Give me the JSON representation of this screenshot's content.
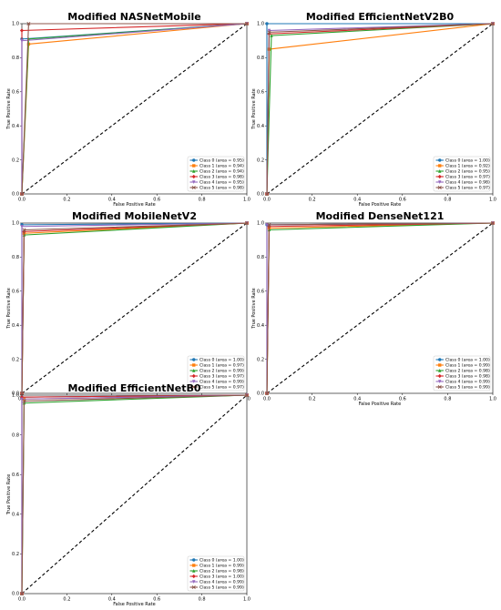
{
  "chart_data": [
    {
      "type": "line",
      "title": "Modified NASNetMobile",
      "xlabel": "False Positive Rate",
      "ylabel": "True Positive Rate",
      "xlim": [
        0,
        1
      ],
      "ylim": [
        0,
        1
      ],
      "x_ticks": [
        "0.0",
        "0.2",
        "0.4",
        "0.6",
        "0.8",
        "1.0"
      ],
      "y_ticks": [
        "0.0",
        "0.2",
        "0.4",
        "0.6",
        "0.8",
        "1.0"
      ],
      "legend_position": "lower-right",
      "diagonal": "dashed-black",
      "series": [
        {
          "name": "Class 0 (area = 0.95)",
          "color": "#1f77b4",
          "points": [
            [
              0,
              0
            ],
            [
              0,
              0.91
            ],
            [
              1,
              1
            ]
          ]
        },
        {
          "name": "Class 1 (area = 0.94)",
          "color": "#ff7f0e",
          "points": [
            [
              0,
              0
            ],
            [
              0.03,
              0.88
            ],
            [
              1,
              1
            ]
          ]
        },
        {
          "name": "Class 2 (area = 0.94)",
          "color": "#2ca02c",
          "points": [
            [
              0,
              0
            ],
            [
              0.03,
              0.91
            ],
            [
              1,
              1
            ]
          ]
        },
        {
          "name": "Class 3 (area = 0.98)",
          "color": "#d62728",
          "points": [
            [
              0,
              0
            ],
            [
              0,
              0.96
            ],
            [
              1,
              1
            ]
          ]
        },
        {
          "name": "Class 4 (area = 0.95)",
          "color": "#9467bd",
          "points": [
            [
              0,
              0
            ],
            [
              0,
              0.9
            ],
            [
              1,
              1
            ]
          ]
        },
        {
          "name": "Class 5 (area = 0.98)",
          "color": "#8c564b",
          "points": [
            [
              0,
              0
            ],
            [
              0.03,
              1.0
            ],
            [
              1,
              1
            ]
          ]
        }
      ]
    },
    {
      "type": "line",
      "title": "Modified EfficientNetV2B0",
      "xlabel": "False Positive Rate",
      "ylabel": "True Positive Rate",
      "xlim": [
        0,
        1
      ],
      "ylim": [
        0,
        1
      ],
      "x_ticks": [
        "0.0",
        "0.2",
        "0.4",
        "0.6",
        "0.8",
        "1.0"
      ],
      "y_ticks": [
        "0.0",
        "0.2",
        "0.4",
        "0.6",
        "0.8",
        "1.0"
      ],
      "legend_position": "lower-right",
      "diagonal": "dashed-black",
      "series": [
        {
          "name": "Class 0 (area = 1.00)",
          "color": "#1f77b4",
          "points": [
            [
              0,
              0
            ],
            [
              0,
              1.0
            ],
            [
              1,
              1
            ]
          ]
        },
        {
          "name": "Class 1 (area = 0.92)",
          "color": "#ff7f0e",
          "points": [
            [
              0,
              0
            ],
            [
              0.01,
              0.85
            ],
            [
              1,
              1
            ]
          ]
        },
        {
          "name": "Class 2 (area = 0.95)",
          "color": "#2ca02c",
          "points": [
            [
              0,
              0
            ],
            [
              0.02,
              0.93
            ],
            [
              1,
              1
            ]
          ]
        },
        {
          "name": "Class 3 (area = 0.97)",
          "color": "#d62728",
          "points": [
            [
              0,
              0
            ],
            [
              0.01,
              0.94
            ],
            [
              1,
              1
            ]
          ]
        },
        {
          "name": "Class 4 (area = 0.98)",
          "color": "#9467bd",
          "points": [
            [
              0,
              0
            ],
            [
              0.01,
              0.96
            ],
            [
              1,
              1
            ]
          ]
        },
        {
          "name": "Class 5 (area = 0.97)",
          "color": "#8c564b",
          "points": [
            [
              0,
              0
            ],
            [
              0.01,
              0.95
            ],
            [
              1,
              1
            ]
          ]
        }
      ]
    },
    {
      "type": "line",
      "title": "Modified MobileNetV2",
      "xlabel": "False Positive Rate",
      "ylabel": "True Positive Rate",
      "xlim": [
        0,
        1
      ],
      "ylim": [
        0,
        1
      ],
      "x_ticks": [
        "0.0",
        "0.2",
        "0.4",
        "0.6",
        "0.8",
        "1.0"
      ],
      "y_ticks": [
        "0.0",
        "0.2",
        "0.4",
        "0.6",
        "0.8",
        "1.0"
      ],
      "legend_position": "lower-right",
      "diagonal": "dashed-black",
      "series": [
        {
          "name": "Class 0 (area = 1.00)",
          "color": "#1f77b4",
          "points": [
            [
              0,
              0
            ],
            [
              0,
              0.99
            ],
            [
              1,
              1
            ]
          ]
        },
        {
          "name": "Class 1 (area = 0.97)",
          "color": "#ff7f0e",
          "points": [
            [
              0,
              0
            ],
            [
              0.01,
              0.94
            ],
            [
              1,
              1
            ]
          ]
        },
        {
          "name": "Class 2 (area = 0.99)",
          "color": "#2ca02c",
          "points": [
            [
              0,
              0
            ],
            [
              0.01,
              0.93
            ],
            [
              1,
              1
            ]
          ]
        },
        {
          "name": "Class 3 (area = 0.97)",
          "color": "#d62728",
          "points": [
            [
              0,
              0
            ],
            [
              0.01,
              0.95
            ],
            [
              1,
              1
            ]
          ]
        },
        {
          "name": "Class 4 (area = 0.99)",
          "color": "#9467bd",
          "points": [
            [
              0,
              0
            ],
            [
              0,
              0.98
            ],
            [
              1,
              1
            ]
          ]
        },
        {
          "name": "Class 5 (area = 0.97)",
          "color": "#8c564b",
          "points": [
            [
              0,
              0
            ],
            [
              0.01,
              0.96
            ],
            [
              1,
              1
            ]
          ]
        }
      ]
    },
    {
      "type": "line",
      "title": "Modified DenseNet121",
      "xlabel": "False Positive Rate",
      "ylabel": "True Positive Rate",
      "xlim": [
        0,
        1
      ],
      "ylim": [
        0,
        1
      ],
      "x_ticks": [
        "0.0",
        "0.2",
        "0.4",
        "0.6",
        "0.8",
        "1.0"
      ],
      "y_ticks": [
        "0.0",
        "0.2",
        "0.4",
        "0.6",
        "0.8",
        "1.0"
      ],
      "legend_position": "lower-right",
      "diagonal": "dashed-black",
      "series": [
        {
          "name": "Class 0 (area = 1.00)",
          "color": "#1f77b4",
          "points": [
            [
              0,
              0
            ],
            [
              0,
              0.99
            ],
            [
              1,
              1
            ]
          ]
        },
        {
          "name": "Class 1 (area = 0.99)",
          "color": "#ff7f0e",
          "points": [
            [
              0,
              0
            ],
            [
              0.01,
              0.97
            ],
            [
              1,
              1
            ]
          ]
        },
        {
          "name": "Class 2 (area = 0.98)",
          "color": "#2ca02c",
          "points": [
            [
              0,
              0
            ],
            [
              0.01,
              0.96
            ],
            [
              1,
              1
            ]
          ]
        },
        {
          "name": "Class 3 (area = 0.98)",
          "color": "#d62728",
          "points": [
            [
              0,
              0
            ],
            [
              0.01,
              0.98
            ],
            [
              1,
              1
            ]
          ]
        },
        {
          "name": "Class 4 (area = 0.99)",
          "color": "#9467bd",
          "points": [
            [
              0,
              0
            ],
            [
              0,
              0.99
            ],
            [
              1,
              1
            ]
          ]
        },
        {
          "name": "Class 5 (area = 0.99)",
          "color": "#8c564b",
          "points": [
            [
              0,
              0
            ],
            [
              0.01,
              0.99
            ],
            [
              1,
              1
            ]
          ]
        }
      ]
    },
    {
      "type": "line",
      "title": "Modified EfficientNetB0",
      "xlabel": "False Positive Rate",
      "ylabel": "True Positive Rate",
      "xlim": [
        0,
        1
      ],
      "ylim": [
        0,
        1
      ],
      "x_ticks": [
        "0.0",
        "0.2",
        "0.4",
        "0.6",
        "0.8",
        "1.0"
      ],
      "y_ticks": [
        "0.0",
        "0.2",
        "0.4",
        "0.6",
        "0.8",
        "1.0"
      ],
      "legend_position": "lower-right",
      "diagonal": "dashed-black",
      "series": [
        {
          "name": "Class 0 (area = 1.00)",
          "color": "#1f77b4",
          "points": [
            [
              0,
              0
            ],
            [
              0,
              0.99
            ],
            [
              1,
              1
            ]
          ]
        },
        {
          "name": "Class 1 (area = 0.99)",
          "color": "#ff7f0e",
          "points": [
            [
              0,
              0
            ],
            [
              0.01,
              0.98
            ],
            [
              1,
              1
            ]
          ]
        },
        {
          "name": "Class 2 (area = 0.98)",
          "color": "#2ca02c",
          "points": [
            [
              0,
              0
            ],
            [
              0.01,
              0.96
            ],
            [
              1,
              1
            ]
          ]
        },
        {
          "name": "Class 3 (area = 1.00)",
          "color": "#d62728",
          "points": [
            [
              0,
              0
            ],
            [
              0,
              0.99
            ],
            [
              1,
              1
            ]
          ]
        },
        {
          "name": "Class 4 (area = 0.99)",
          "color": "#9467bd",
          "points": [
            [
              0,
              0
            ],
            [
              0,
              0.98
            ],
            [
              1,
              1
            ]
          ]
        },
        {
          "name": "Class 5 (area = 0.99)",
          "color": "#8c564b",
          "points": [
            [
              0,
              0
            ],
            [
              0.01,
              0.97
            ],
            [
              1,
              1
            ]
          ]
        }
      ]
    }
  ]
}
